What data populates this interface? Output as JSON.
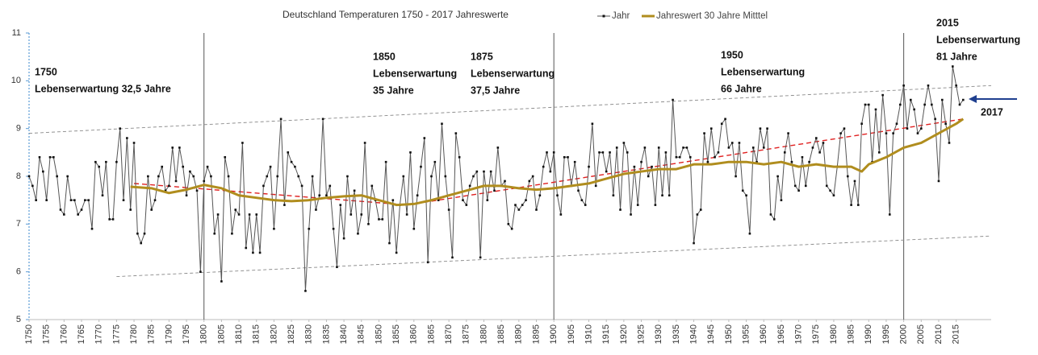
{
  "chart_data": {
    "type": "line",
    "title": "Deutschland Temperaturen 1750 -  2017 Jahreswerte",
    "xlim": [
      1750,
      2025
    ],
    "ylim": [
      5,
      11
    ],
    "yticks": [
      5,
      6,
      7,
      8,
      9,
      10,
      11
    ],
    "xticks": [
      1750,
      1755,
      1760,
      1765,
      1770,
      1775,
      1780,
      1785,
      1790,
      1795,
      1800,
      1805,
      1810,
      1815,
      1820,
      1825,
      1830,
      1835,
      1840,
      1845,
      1850,
      1855,
      1860,
      1865,
      1870,
      1875,
      1880,
      1885,
      1890,
      1895,
      1900,
      1905,
      1910,
      1915,
      1920,
      1925,
      1930,
      1935,
      1940,
      1945,
      1950,
      1955,
      1960,
      1965,
      1970,
      1975,
      1980,
      1985,
      1990,
      1995,
      2000,
      2005,
      2010,
      2015
    ],
    "vlines": [
      1800,
      1900,
      2000
    ],
    "series": [
      {
        "name": "Jahr",
        "color": "#555555",
        "marker": "#111111",
        "x": [
          1750,
          1751,
          1752,
          1753,
          1754,
          1755,
          1756,
          1757,
          1758,
          1759,
          1760,
          1761,
          1762,
          1763,
          1764,
          1765,
          1766,
          1767,
          1768,
          1769,
          1770,
          1771,
          1772,
          1773,
          1774,
          1775,
          1776,
          1777,
          1778,
          1779,
          1780,
          1781,
          1782,
          1783,
          1784,
          1785,
          1786,
          1787,
          1788,
          1789,
          1790,
          1791,
          1792,
          1793,
          1794,
          1795,
          1796,
          1797,
          1798,
          1799,
          1800,
          1801,
          1802,
          1803,
          1804,
          1805,
          1806,
          1807,
          1808,
          1809,
          1810,
          1811,
          1812,
          1813,
          1814,
          1815,
          1816,
          1817,
          1818,
          1819,
          1820,
          1821,
          1822,
          1823,
          1824,
          1825,
          1826,
          1827,
          1828,
          1829,
          1830,
          1831,
          1832,
          1833,
          1834,
          1835,
          1836,
          1837,
          1838,
          1839,
          1840,
          1841,
          1842,
          1843,
          1844,
          1845,
          1846,
          1847,
          1848,
          1849,
          1850,
          1851,
          1852,
          1853,
          1854,
          1855,
          1856,
          1857,
          1858,
          1859,
          1860,
          1861,
          1862,
          1863,
          1864,
          1865,
          1866,
          1867,
          1868,
          1869,
          1870,
          1871,
          1872,
          1873,
          1874,
          1875,
          1876,
          1877,
          1878,
          1879,
          1880,
          1881,
          1882,
          1883,
          1884,
          1885,
          1886,
          1887,
          1888,
          1889,
          1890,
          1891,
          1892,
          1893,
          1894,
          1895,
          1896,
          1897,
          1898,
          1899,
          1900,
          1901,
          1902,
          1903,
          1904,
          1905,
          1906,
          1907,
          1908,
          1909,
          1910,
          1911,
          1912,
          1913,
          1914,
          1915,
          1916,
          1917,
          1918,
          1919,
          1920,
          1921,
          1922,
          1923,
          1924,
          1925,
          1926,
          1927,
          1928,
          1929,
          1930,
          1931,
          1932,
          1933,
          1934,
          1935,
          1936,
          1937,
          1938,
          1939,
          1940,
          1941,
          1942,
          1943,
          1944,
          1945,
          1946,
          1947,
          1948,
          1949,
          1950,
          1951,
          1952,
          1953,
          1954,
          1955,
          1956,
          1957,
          1958,
          1959,
          1960,
          1961,
          1962,
          1963,
          1964,
          1965,
          1966,
          1967,
          1968,
          1969,
          1970,
          1971,
          1972,
          1973,
          1974,
          1975,
          1976,
          1977,
          1978,
          1979,
          1980,
          1981,
          1982,
          1983,
          1984,
          1985,
          1986,
          1987,
          1988,
          1989,
          1990,
          1991,
          1992,
          1993,
          1994,
          1995,
          1996,
          1997,
          1998,
          1999,
          2000,
          2001,
          2002,
          2003,
          2004,
          2005,
          2006,
          2007,
          2008,
          2009,
          2010,
          2011,
          2012,
          2013,
          2014,
          2015,
          2016,
          2017
        ],
        "values": [
          8.0,
          7.8,
          7.5,
          8.4,
          8.1,
          7.5,
          8.4,
          8.4,
          8.0,
          7.3,
          7.2,
          8.0,
          7.5,
          7.5,
          7.2,
          7.3,
          7.5,
          7.5,
          6.9,
          8.3,
          8.2,
          7.6,
          8.3,
          7.1,
          7.1,
          8.3,
          9.0,
          7.5,
          8.8,
          7.3,
          8.7,
          6.8,
          6.6,
          6.8,
          8.0,
          7.3,
          7.5,
          8.0,
          8.2,
          7.7,
          7.8,
          8.6,
          7.9,
          8.6,
          8.2,
          7.6,
          8.1,
          8.0,
          7.7,
          6.0,
          7.9,
          8.2,
          8.0,
          6.8,
          7.2,
          5.8,
          8.4,
          8.0,
          6.8,
          7.3,
          7.2,
          8.7,
          6.5,
          7.2,
          6.4,
          7.2,
          6.4,
          7.8,
          8.0,
          8.2,
          6.9,
          8.0,
          9.2,
          7.4,
          8.5,
          8.3,
          8.2,
          8.0,
          7.8,
          5.6,
          6.9,
          8.0,
          7.3,
          7.6,
          9.2,
          7.6,
          7.8,
          6.9,
          6.1,
          7.4,
          6.7,
          8.0,
          7.2,
          7.7,
          6.8,
          7.2,
          8.7,
          7.0,
          7.8,
          7.5,
          7.1,
          7.1,
          8.3,
          6.6,
          7.5,
          6.4,
          7.4,
          8.0,
          7.2,
          8.5,
          6.9,
          7.6,
          8.2,
          8.8,
          6.2,
          8.0,
          8.3,
          7.5,
          9.1,
          8.0,
          7.3,
          6.3,
          8.9,
          8.4,
          7.5,
          7.4,
          7.8,
          8.0,
          8.1,
          6.3,
          8.1,
          7.5,
          8.1,
          7.7,
          8.6,
          7.8,
          7.9,
          7.0,
          6.9,
          7.4,
          7.3,
          7.4,
          7.5,
          7.9,
          8.0,
          7.3,
          7.6,
          8.2,
          8.5,
          8.1,
          8.5,
          7.6,
          7.2,
          8.4,
          8.4,
          7.8,
          8.3,
          7.7,
          7.5,
          7.4,
          8.2,
          9.1,
          7.8,
          8.5,
          8.5,
          8.1,
          8.5,
          7.6,
          8.6,
          7.3,
          8.7,
          8.5,
          7.2,
          8.2,
          7.4,
          8.3,
          8.6,
          8.0,
          8.2,
          7.4,
          8.6,
          7.6,
          8.5,
          7.6,
          9.6,
          8.4,
          8.4,
          8.6,
          8.6,
          8.4,
          6.6,
          7.2,
          7.3,
          8.9,
          8.3,
          9.0,
          8.4,
          8.5,
          9.1,
          9.2,
          8.6,
          8.7,
          8.0,
          8.7,
          7.7,
          7.6,
          6.8,
          8.6,
          8.3,
          9.0,
          8.6,
          9.0,
          7.2,
          7.1,
          8.0,
          7.5,
          8.5,
          8.9,
          8.3,
          7.8,
          7.7,
          8.4,
          7.8,
          8.3,
          8.6,
          8.8,
          8.5,
          8.7,
          7.8,
          7.7,
          7.6,
          8.2,
          8.9,
          9.0,
          8.0,
          7.4,
          7.9,
          7.4,
          9.1,
          9.5,
          9.5,
          8.3,
          9.4,
          8.5,
          9.7,
          8.9,
          7.2,
          8.9,
          9.1,
          9.5,
          9.9,
          9.0,
          9.6,
          9.4,
          8.9,
          9.0,
          9.5,
          9.9,
          9.5,
          9.2,
          7.9,
          9.6,
          9.1,
          8.7,
          10.3,
          9.9,
          9.5,
          9.6
        ]
      },
      {
        "name": "Jahreswert 30 Jahre Mitttel",
        "color": "#b08d1e",
        "x": [
          1779,
          1785,
          1790,
          1795,
          1800,
          1805,
          1810,
          1815,
          1820,
          1825,
          1830,
          1835,
          1840,
          1845,
          1850,
          1855,
          1860,
          1865,
          1870,
          1875,
          1880,
          1885,
          1890,
          1895,
          1900,
          1905,
          1910,
          1915,
          1920,
          1925,
          1930,
          1935,
          1940,
          1945,
          1950,
          1955,
          1960,
          1965,
          1970,
          1975,
          1980,
          1985,
          1988,
          1990,
          1995,
          2000,
          2005,
          2010,
          2015,
          2017
        ],
        "values": [
          7.78,
          7.75,
          7.65,
          7.72,
          7.82,
          7.75,
          7.6,
          7.55,
          7.5,
          7.48,
          7.5,
          7.55,
          7.58,
          7.6,
          7.5,
          7.4,
          7.42,
          7.5,
          7.6,
          7.7,
          7.8,
          7.8,
          7.75,
          7.72,
          7.75,
          7.8,
          7.85,
          7.95,
          8.05,
          8.1,
          8.15,
          8.15,
          8.25,
          8.25,
          8.3,
          8.3,
          8.25,
          8.3,
          8.2,
          8.25,
          8.2,
          8.2,
          8.1,
          8.25,
          8.4,
          8.6,
          8.7,
          8.9,
          9.1,
          9.2
        ]
      }
    ],
    "trend_lines": [
      {
        "color": "#e02020",
        "x": [
          1780,
          1858,
          2017
        ],
        "values": [
          7.85,
          7.4,
          9.2
        ]
      },
      {
        "color": "#888888",
        "x": [
          1750,
          2025
        ],
        "values": [
          8.9,
          9.9
        ]
      },
      {
        "color": "#888888",
        "x": [
          1775,
          2025
        ],
        "values": [
          5.9,
          6.75
        ]
      }
    ],
    "annotations": [
      {
        "lines": [
          "1750",
          "Lebenserwartung 32,5 Jahre"
        ]
      },
      {
        "lines": [
          "1850",
          "Lebenserwartung",
          "35 Jahre"
        ]
      },
      {
        "lines": [
          "1875",
          "Lebenserwartung",
          "37,5 Jahre"
        ]
      },
      {
        "lines": [
          "1950",
          "Lebenserwartung",
          "66 Jahre"
        ]
      },
      {
        "lines": [
          "2015",
          "Lebenserwartung",
          "81 Jahre"
        ]
      },
      {
        "lines": [
          "2017"
        ]
      }
    ]
  }
}
